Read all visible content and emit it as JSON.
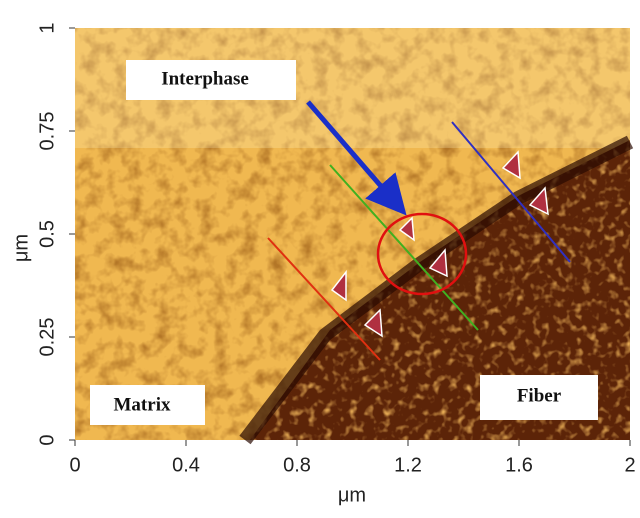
{
  "chart_data": {
    "type": "image",
    "xlabel": "μm",
    "ylabel": "μm",
    "xlim": [
      0,
      2
    ],
    "xticks": [
      0,
      0.4,
      0.8,
      1.2,
      1.6,
      2
    ],
    "ylim": [
      0,
      1
    ],
    "yticks": [
      0,
      0.25,
      0.5,
      0.75,
      1
    ],
    "annotations": [
      "Interphase",
      "Matrix",
      "Fiber"
    ]
  }
}
